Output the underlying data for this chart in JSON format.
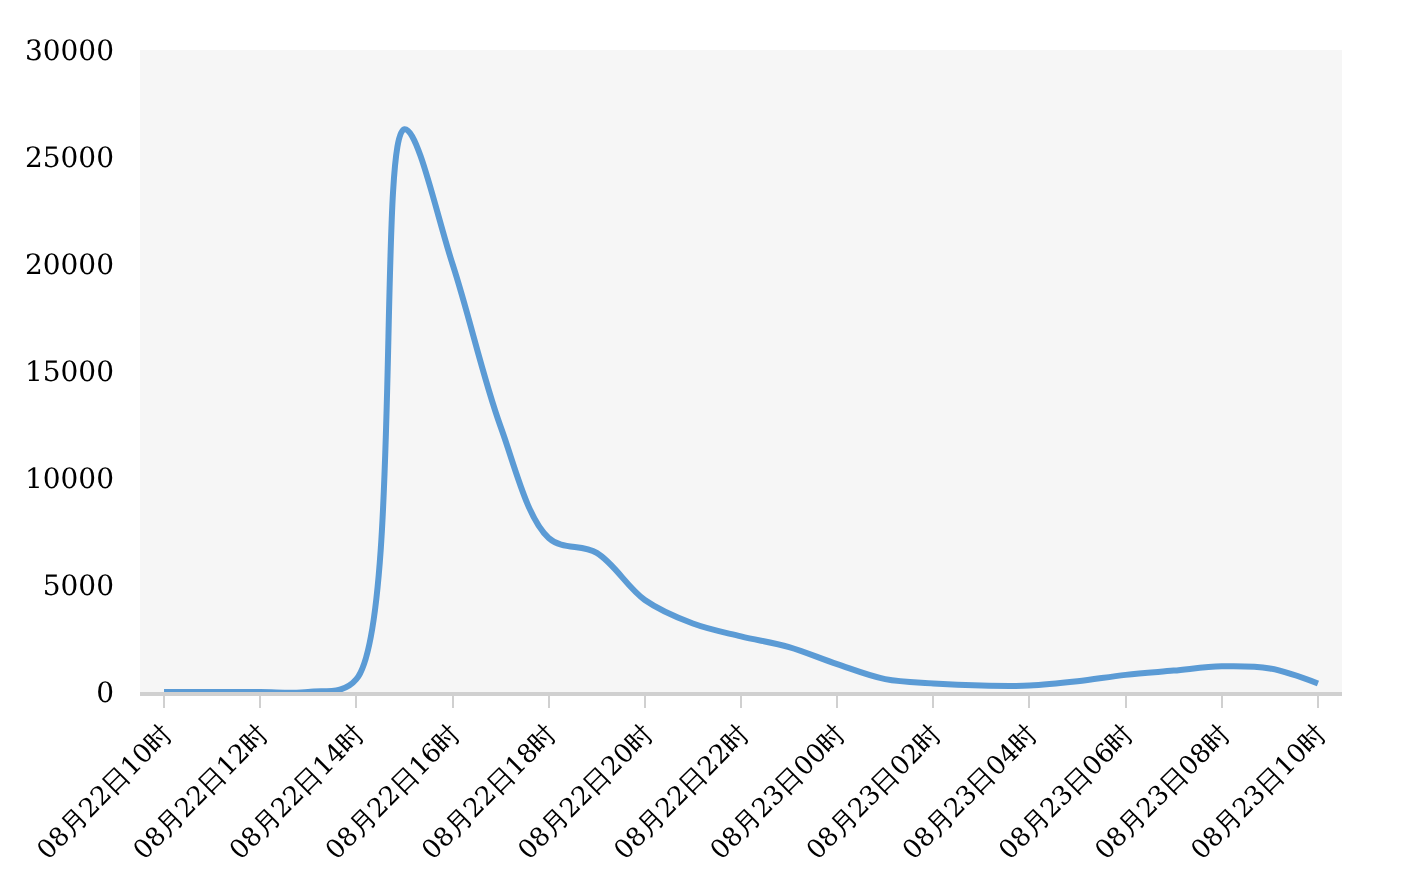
{
  "chart_data": {
    "type": "line",
    "categories": [
      "08月22日10时",
      null,
      "08月22日12时",
      null,
      "08月22日14时",
      null,
      "08月22日16时",
      null,
      "08月22日18时",
      null,
      "08月22日20时",
      null,
      "08月22日22时",
      null,
      "08月23日00时",
      null,
      "08月23日02时",
      null,
      "08月23日04时",
      null,
      "08月23日06时",
      null,
      "08月23日08时",
      null,
      "08月23日10时"
    ],
    "series": [
      {
        "color": "#5b9bd5",
        "values": [
          0,
          0,
          0,
          0,
          600,
          26300,
          20000,
          12400,
          7200,
          6500,
          4300,
          3200,
          2600,
          2100,
          1300,
          600,
          400,
          300,
          300,
          500,
          800,
          1000,
          1200,
          1100,
          400
        ]
      }
    ],
    "ylim": [
      0,
      30000
    ],
    "yticks": [
      0,
      5000,
      10000,
      15000,
      20000,
      25000,
      30000
    ],
    "grid": false,
    "marker": "none",
    "line_style": "solid"
  }
}
